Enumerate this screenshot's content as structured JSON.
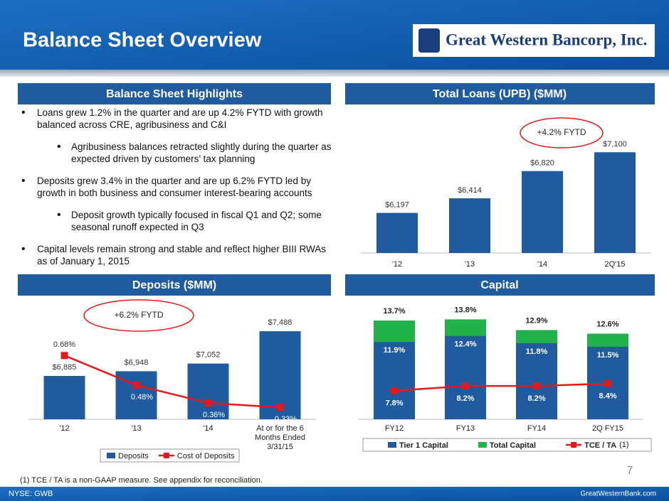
{
  "header": {
    "title": "Balance Sheet Overview",
    "logo": "Great Western Bancorp, Inc."
  },
  "highlights": {
    "title": "Balance Sheet Highlights",
    "bullets": [
      {
        "text": "Loans grew 1.2% in the quarter and are up 4.2% FYTD with growth balanced across CRE, agribusiness and C&I",
        "sub": [
          "Agribusiness balances retracted slightly during the quarter as expected driven by customers’ tax planning"
        ]
      },
      {
        "text": "Deposits grew 3.4% in the quarter and are up 6.2% FYTD led by growth in both business and consumer interest-bearing accounts",
        "sub": [
          "Deposit growth typically focused in fiscal Q1 and Q2; some seasonal runoff expected in Q3"
        ]
      },
      {
        "text": "Capital levels remain strong and stable and reflect higher BIII RWAs as of January 1, 2015"
      }
    ]
  },
  "footnote": "(1) TCE / TA is a non-GAAP measure.  See appendix for reconciliation.",
  "page_number": "7",
  "footer": {
    "left": "NYSE: GWB",
    "right": "GreatWesternBank.com"
  },
  "chart_data": [
    {
      "type": "bar",
      "title": "Total Loans (UPB) ($MM)",
      "annotation": "+4.2% FYTD",
      "categories": [
        "'12",
        "'13",
        "'14",
        "2Q'15"
      ],
      "values": [
        6197,
        6414,
        6820,
        7100
      ],
      "value_labels": [
        "$6,197",
        "$6,414",
        "$6,820",
        "$7,100"
      ],
      "color": "#1f5b9e",
      "ylim": [
        5600,
        7600
      ]
    },
    {
      "type": "bar",
      "title": "Deposits ($MM)",
      "annotation": "+6.2% FYTD",
      "categories": [
        "'12",
        "'13",
        "'14",
        "At or for the 6 Months Ended 3/31/15"
      ],
      "series": [
        {
          "name": "Deposits",
          "color": "#1f5b9e",
          "values": [
            6885,
            6948,
            7052,
            7488
          ],
          "value_labels": [
            "$6,885",
            "$6,948",
            "$7,052",
            "$7,488"
          ]
        },
        {
          "name": "Cost of Deposits",
          "type": "line",
          "axis": "y2",
          "color": "#e8171b",
          "values": [
            0.68,
            0.48,
            0.36,
            0.33
          ],
          "value_labels": [
            "0.68%",
            "0.48%",
            "0.36%",
            "0.33%"
          ]
        }
      ],
      "ylim": [
        6300,
        7700
      ],
      "y2lim": [
        0.25,
        0.95
      ],
      "legend": "bottom"
    },
    {
      "type": "bar",
      "title": "Capital",
      "barmode": "overlay",
      "categories": [
        "FY12",
        "FY13",
        "FY14",
        "2Q FY15"
      ],
      "series": [
        {
          "name": "Tier 1 Capital",
          "color": "#1f5b9e",
          "values": [
            11.9,
            12.4,
            11.8,
            11.5
          ],
          "value_labels": [
            "11.9%",
            "12.4%",
            "11.8%",
            "11.5%"
          ]
        },
        {
          "name": "Total Capital",
          "color": "#21b24b",
          "values": [
            13.7,
            13.8,
            12.9,
            12.6
          ],
          "value_labels": [
            "13.7%",
            "13.8%",
            "12.9%",
            "12.6%"
          ]
        },
        {
          "name": "TCE / TA",
          "type": "line",
          "color": "#e8171b",
          "values": [
            7.8,
            8.2,
            8.2,
            8.4
          ],
          "value_labels": [
            "7.8%",
            "8.2%",
            "8.2%",
            "8.4%"
          ]
        }
      ],
      "legend_note": "(1)",
      "ylim": [
        5.4,
        14.6
      ],
      "legend": "bottom"
    }
  ]
}
